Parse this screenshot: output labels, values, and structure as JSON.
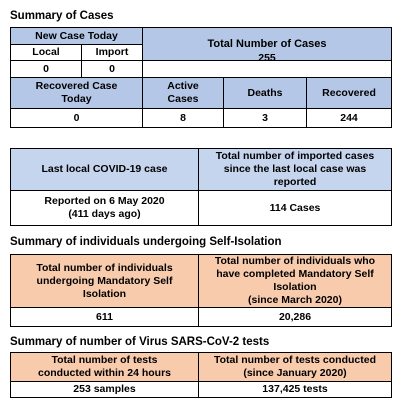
{
  "cases": {
    "heading": "Summary of Cases",
    "new_case_today": "New Case Today",
    "local_label": "Local",
    "import_label": "Import",
    "local_value": "0",
    "import_value": "0",
    "total_label": "Total Number of Cases",
    "total_value": "255",
    "recovered_today_label_1": "Recovered Case",
    "recovered_today_label_2": "Today",
    "active_label_1": "Active",
    "active_label_2": "Cases",
    "deaths_label": "Deaths",
    "recovered_label": "Recovered",
    "recovered_today_value": "0",
    "active_value": "8",
    "deaths_value": "3",
    "recovered_value": "244"
  },
  "last_case": {
    "last_local_label": "Last local COVID-19 case",
    "imported_label_1": "Total number of imported cases",
    "imported_label_2": "since the last local case was",
    "imported_label_3": "reported",
    "reported_value_1": "Reported on 6 May 2020",
    "reported_value_2": "(411 days ago)",
    "imported_value": "114 Cases"
  },
  "isolation": {
    "heading": "Summary of individuals undergoing Self-Isolation",
    "undergoing_label_1": "Total number of individuals",
    "undergoing_label_2": "undergoing Mandatory Self",
    "undergoing_label_3": "Isolation",
    "completed_label_1": "Total number of individuals who",
    "completed_label_2": "have completed Mandatory Self",
    "completed_label_3": "Isolation",
    "completed_label_4": "(since March 2020)",
    "undergoing_value": "611",
    "completed_value": "20,286"
  },
  "tests": {
    "heading": "Summary of number of Virus SARS-CoV-2 tests",
    "within24_label_1": "Total number of tests",
    "within24_label_2": "conducted within 24 hours",
    "since_jan_label_1": "Total number of tests conducted",
    "since_jan_label_2": "(since January 2020)",
    "within24_value": "253 samples",
    "since_jan_value": "137,425 tests"
  },
  "colors": {
    "blue_header": "#b4c7e7",
    "light_blue_header": "#c5d5ee",
    "peach_header": "#f8cbad"
  }
}
